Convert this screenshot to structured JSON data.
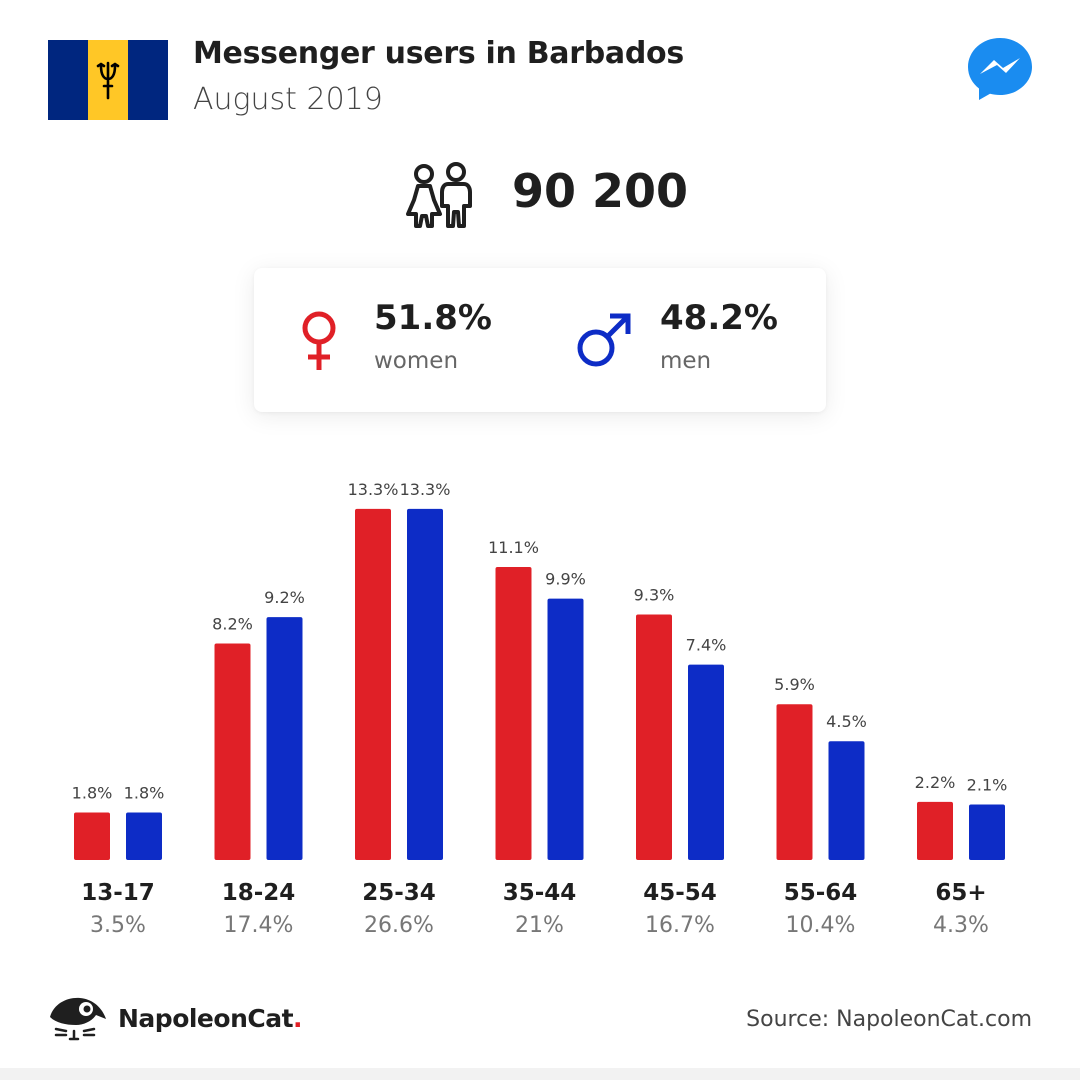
{
  "header": {
    "title": "Messenger users in Barbados",
    "subtitle": "August 2019",
    "flag_icon": "barbados-flag",
    "app_icon": "messenger-icon"
  },
  "total": {
    "icon": "people-icon",
    "value": "90 200"
  },
  "gender": {
    "women": {
      "pct": "51.8%",
      "label": "women",
      "icon": "female-symbol-icon",
      "color": "#e02027"
    },
    "men": {
      "pct": "48.2%",
      "label": "men",
      "icon": "male-symbol-icon",
      "color": "#0d2cc6"
    }
  },
  "chart_data": {
    "type": "bar",
    "categories": [
      "13-17",
      "18-24",
      "25-34",
      "35-44",
      "45-54",
      "55-64",
      "65+"
    ],
    "category_totals": [
      "3.5%",
      "17.4%",
      "26.6%",
      "21%",
      "16.7%",
      "10.4%",
      "4.3%"
    ],
    "series": [
      {
        "values": [
          1.8,
          8.2,
          13.3,
          11.1,
          9.3,
          5.9,
          2.2
        ],
        "labels": [
          "1.8%",
          "8.2%",
          "13.3%",
          "11.1%",
          "9.3%",
          "5.9%",
          "2.2%"
        ],
        "color": "#e02027"
      },
      {
        "values": [
          1.8,
          9.2,
          13.3,
          9.9,
          7.4,
          4.5,
          2.1
        ],
        "labels": [
          "1.8%",
          "9.2%",
          "13.3%",
          "9.9%",
          "7.4%",
          "4.5%",
          "2.1%"
        ],
        "color": "#0d2cc6"
      }
    ],
    "grid": false
  },
  "footer": {
    "brand_name": "NapoleonCat",
    "brand_dot": ".",
    "brand_icon": "napoleoncat-logo-icon",
    "source": "Source: NapoleonCat.com"
  }
}
